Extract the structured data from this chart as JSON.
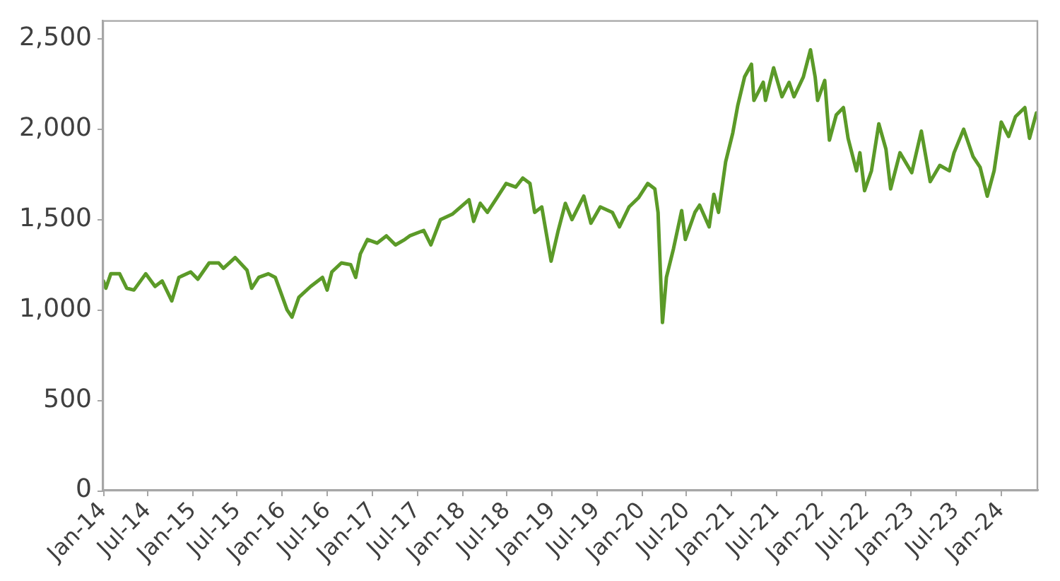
{
  "chart_data": {
    "type": "line",
    "color": "#5b9a28",
    "marker": "none",
    "xlim": [
      "2014-01-01",
      "2024-05-28"
    ],
    "ylim": [
      0,
      2600
    ],
    "yticks": [
      0,
      500,
      {
        "value": 1000,
        "label": "1,000"
      },
      {
        "value": 1500,
        "label": "1,500"
      },
      {
        "value": 2000,
        "label": "2,000"
      },
      {
        "value": 2500,
        "label": "2,500"
      }
    ],
    "xticks": [
      {
        "value": "2014-01",
        "label": "Jan-14"
      },
      {
        "value": "2014-07",
        "label": "Jul-14"
      },
      {
        "value": "2015-01",
        "label": "Jan-15"
      },
      {
        "value": "2015-07",
        "label": "Jul-15"
      },
      {
        "value": "2016-01",
        "label": "Jan-16"
      },
      {
        "value": "2016-07",
        "label": "Jul-16"
      },
      {
        "value": "2017-01",
        "label": "Jan-17"
      },
      {
        "value": "2017-07",
        "label": "Jul-17"
      },
      {
        "value": "2018-01",
        "label": "Jan-18"
      },
      {
        "value": "2018-07",
        "label": "Jul-18"
      },
      {
        "value": "2019-01",
        "label": "Jan-19"
      },
      {
        "value": "2019-07",
        "label": "Jul-19"
      },
      {
        "value": "2020-01",
        "label": "Jan-20"
      },
      {
        "value": "2020-07",
        "label": "Jul-20"
      },
      {
        "value": "2021-01",
        "label": "Jan-21"
      },
      {
        "value": "2021-07",
        "label": "Jul-21"
      },
      {
        "value": "2022-01",
        "label": "Jan-22"
      },
      {
        "value": "2022-07",
        "label": "Jul-22"
      },
      {
        "value": "2023-01",
        "label": "Jan-23"
      },
      {
        "value": "2023-07",
        "label": "Jul-23"
      },
      {
        "value": "2024-01",
        "label": "Jan-24"
      }
    ],
    "x": [
      "2014-01-02",
      "2014-01-12",
      "2014-02-01",
      "2014-03-09",
      "2014-04-07",
      "2014-05-06",
      "2014-06-23",
      "2014-07-31",
      "2014-08-29",
      "2014-10-07",
      "2014-11-05",
      "2014-12-23",
      "2015-01-21",
      "2015-03-08",
      "2015-04-16",
      "2015-05-05",
      "2015-06-22",
      "2015-08-09",
      "2015-08-28",
      "2015-09-26",
      "2015-11-04",
      "2015-12-02",
      "2015-12-21",
      "2016-01-19",
      "2016-02-08",
      "2016-03-07",
      "2016-04-24",
      "2016-06-11",
      "2016-06-30",
      "2016-07-19",
      "2016-08-27",
      "2016-10-04",
      "2016-10-24",
      "2016-11-12",
      "2016-12-11",
      "2017-01-19",
      "2017-02-26",
      "2017-04-04",
      "2017-05-12",
      "2017-06-01",
      "2017-07-28",
      "2017-08-26",
      "2017-10-04",
      "2017-11-21",
      "2018-01-28",
      "2018-02-16",
      "2018-03-15",
      "2018-04-13",
      "2018-05-21",
      "2018-06-28",
      "2018-08-06",
      "2018-09-04",
      "2018-10-03",
      "2018-10-22",
      "2018-11-20",
      "2018-12-28",
      "2019-01-26",
      "2019-02-24",
      "2019-03-23",
      "2019-05-10",
      "2019-06-08",
      "2019-07-16",
      "2019-09-03",
      "2019-10-02",
      "2019-11-10",
      "2019-12-18",
      "2020-01-25",
      "2020-02-23",
      "2020-03-07",
      "2020-03-16",
      "2020-03-25",
      "2020-04-10",
      "2020-05-09",
      "2020-06-11",
      "2020-06-26",
      "2020-08-04",
      "2020-08-23",
      "2020-10-01",
      "2020-10-20",
      "2020-11-08",
      "2020-12-07",
      "2021-01-05",
      "2021-01-25",
      "2021-02-22",
      "2021-03-22",
      "2021-04-01",
      "2021-05-09",
      "2021-05-18",
      "2021-06-20",
      "2021-07-24",
      "2021-08-22",
      "2021-09-11",
      "2021-10-19",
      "2021-11-17",
      "2021-12-06",
      "2021-12-16",
      "2022-01-14",
      "2022-02-02",
      "2022-03-02",
      "2022-03-31",
      "2022-04-19",
      "2022-05-23",
      "2022-06-06",
      "2022-06-25",
      "2022-07-23",
      "2022-08-22",
      "2022-09-20",
      "2022-10-09",
      "2022-11-16",
      "2023-01-03",
      "2023-02-11",
      "2023-03-19",
      "2023-04-27",
      "2023-06-05",
      "2023-06-24",
      "2023-08-02",
      "2023-09-09",
      "2023-10-08",
      "2023-11-06",
      "2023-12-04",
      "2024-01-02",
      "2024-02-01",
      "2024-02-29",
      "2024-04-07",
      "2024-04-26",
      "2024-05-24"
    ],
    "values": [
      1160,
      1120,
      1200,
      1200,
      1120,
      1110,
      1200,
      1130,
      1160,
      1050,
      1180,
      1210,
      1170,
      1260,
      1260,
      1230,
      1290,
      1220,
      1120,
      1180,
      1200,
      1180,
      1110,
      1000,
      960,
      1070,
      1130,
      1180,
      1110,
      1210,
      1260,
      1250,
      1180,
      1310,
      1390,
      1370,
      1410,
      1360,
      1390,
      1410,
      1440,
      1360,
      1500,
      1530,
      1610,
      1490,
      1590,
      1540,
      1620,
      1700,
      1680,
      1730,
      1700,
      1540,
      1570,
      1270,
      1440,
      1590,
      1500,
      1630,
      1480,
      1570,
      1540,
      1460,
      1570,
      1620,
      1700,
      1670,
      1540,
      1230,
      930,
      1180,
      1340,
      1550,
      1390,
      1540,
      1580,
      1460,
      1640,
      1540,
      1820,
      1980,
      2130,
      2290,
      2360,
      2160,
      2260,
      2160,
      2340,
      2180,
      2260,
      2180,
      2290,
      2440,
      2290,
      2160,
      2270,
      1940,
      2080,
      2120,
      1950,
      1770,
      1870,
      1660,
      1770,
      2030,
      1890,
      1670,
      1870,
      1760,
      1990,
      1710,
      1800,
      1770,
      1870,
      2000,
      1850,
      1790,
      1630,
      1770,
      2040,
      1960,
      2070,
      2120,
      1950,
      2090
    ]
  }
}
